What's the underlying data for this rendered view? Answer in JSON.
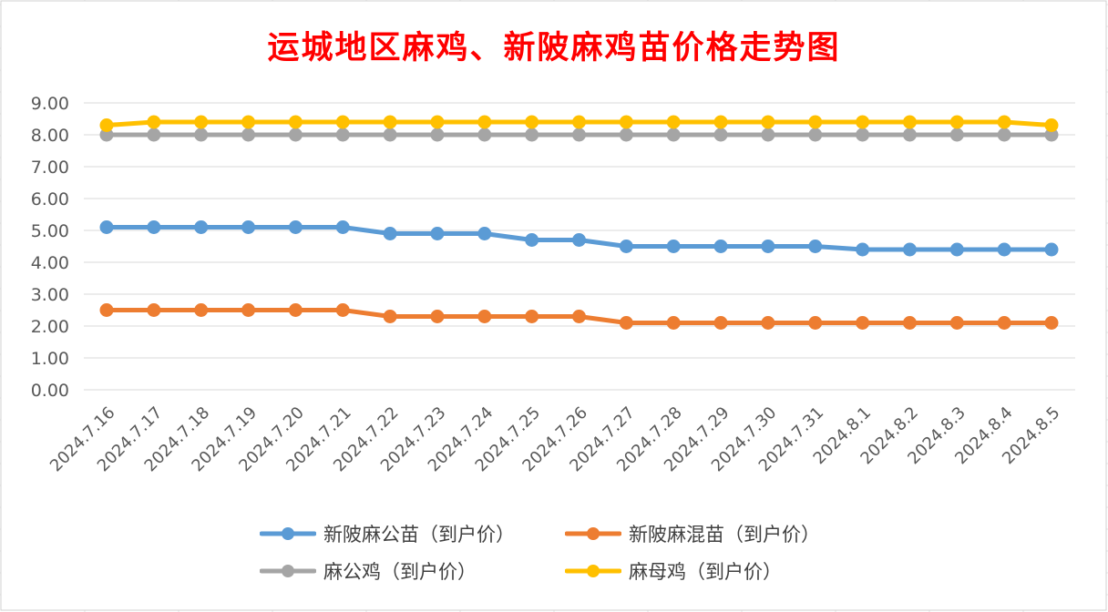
{
  "chart_data": {
    "type": "line",
    "title": "运城地区麻鸡、新陂麻鸡苗价格走势图",
    "xlabel": "",
    "ylabel": "",
    "ylim": [
      0,
      9
    ],
    "y_ticks": [
      "0.00",
      "1.00",
      "2.00",
      "3.00",
      "4.00",
      "5.00",
      "6.00",
      "7.00",
      "8.00",
      "9.00"
    ],
    "grid": "horizontal",
    "legend_position": "bottom",
    "categories": [
      "2024.7.16",
      "2024.7.17",
      "2024.7.18",
      "2024.7.19",
      "2024.7.20",
      "2024.7.21",
      "2024.7.22",
      "2024.7.23",
      "2024.7.24",
      "2024.7.25",
      "2024.7.26",
      "2024.7.27",
      "2024.7.28",
      "2024.7.29",
      "2024.7.30",
      "2024.7.31",
      "2024.8.1",
      "2024.8.2",
      "2024.8.3",
      "2024.8.4",
      "2024.8.5"
    ],
    "series": [
      {
        "name": "新陂麻公苗（到户价）",
        "color": "#5b9bd5",
        "values": [
          5.1,
          5.1,
          5.1,
          5.1,
          5.1,
          5.1,
          4.9,
          4.9,
          4.9,
          4.7,
          4.7,
          4.5,
          4.5,
          4.5,
          4.5,
          4.5,
          4.4,
          4.4,
          4.4,
          4.4,
          4.4
        ]
      },
      {
        "name": "新陂麻混苗（到户价）",
        "color": "#ed7d31",
        "values": [
          2.5,
          2.5,
          2.5,
          2.5,
          2.5,
          2.5,
          2.3,
          2.3,
          2.3,
          2.3,
          2.3,
          2.1,
          2.1,
          2.1,
          2.1,
          2.1,
          2.1,
          2.1,
          2.1,
          2.1,
          2.1
        ]
      },
      {
        "name": "麻公鸡（到户价）",
        "color": "#a5a5a5",
        "values": [
          8.0,
          8.0,
          8.0,
          8.0,
          8.0,
          8.0,
          8.0,
          8.0,
          8.0,
          8.0,
          8.0,
          8.0,
          8.0,
          8.0,
          8.0,
          8.0,
          8.0,
          8.0,
          8.0,
          8.0,
          8.0
        ]
      },
      {
        "name": "麻母鸡（到户价）",
        "color": "#ffc000",
        "values": [
          8.3,
          8.4,
          8.4,
          8.4,
          8.4,
          8.4,
          8.4,
          8.4,
          8.4,
          8.4,
          8.4,
          8.4,
          8.4,
          8.4,
          8.4,
          8.4,
          8.4,
          8.4,
          8.4,
          8.4,
          8.3
        ]
      }
    ]
  },
  "colors": {
    "title": "#ff0000",
    "axis_text": "#595959",
    "gridline": "#d9d9d9",
    "sheet_gridline": "#e3e3e3"
  }
}
